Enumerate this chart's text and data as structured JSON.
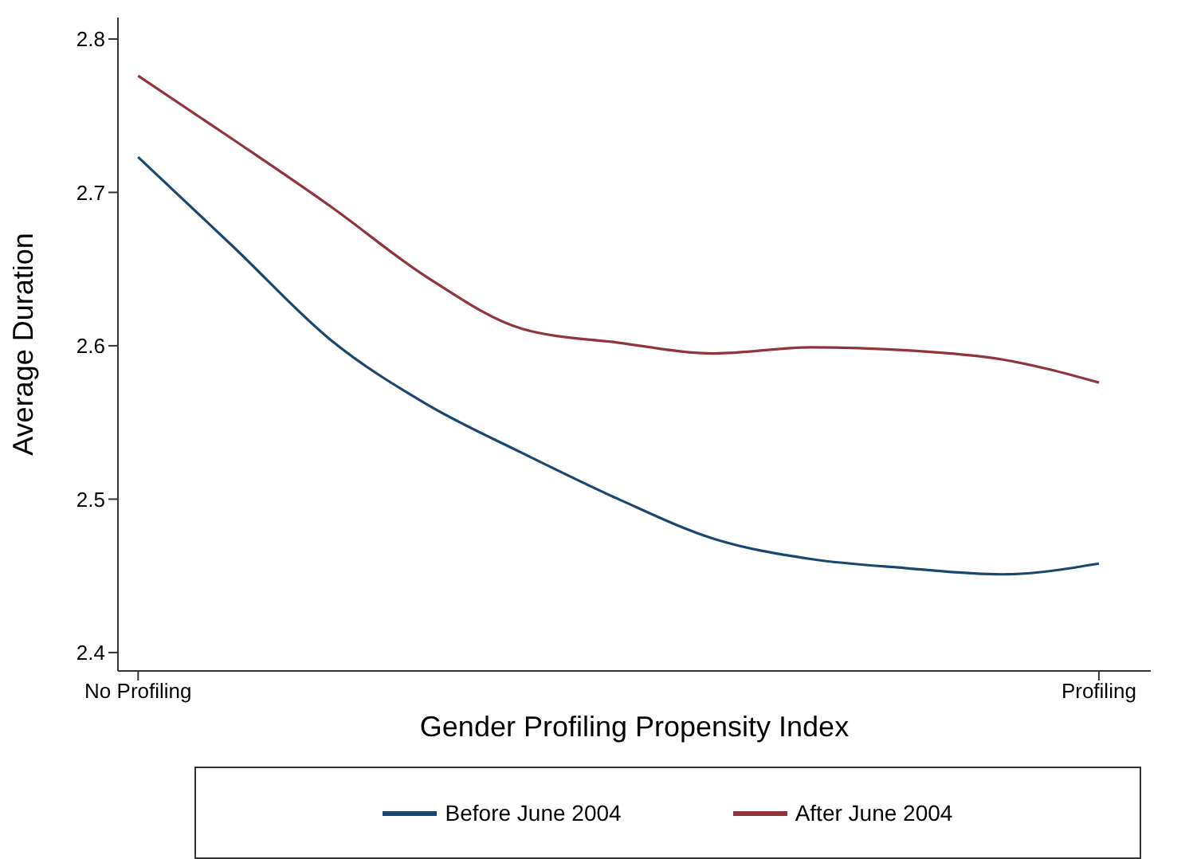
{
  "chart_data": {
    "type": "line",
    "xlabel": "Gender Profiling Propensity Index",
    "ylabel": "Average Duration",
    "categories": [
      "No Profiling",
      null,
      null,
      null,
      null,
      null,
      null,
      null,
      null,
      null,
      "Profiling"
    ],
    "ylim": [
      2.388,
      2.814
    ],
    "yticks": [
      2.4,
      2.5,
      2.6,
      2.7,
      2.8
    ],
    "grid": false,
    "legend": "bottom",
    "marker": "none",
    "line_style": "solid",
    "series": [
      {
        "name": "Before June 2004",
        "color": "#1a476f",
        "values": [
          2.723,
          2.664,
          2.604,
          2.562,
          2.53,
          2.5,
          2.474,
          2.461,
          2.455,
          2.451,
          2.458
        ]
      },
      {
        "name": "After June 2004",
        "color": "#90353b",
        "values": [
          2.776,
          2.734,
          2.691,
          2.645,
          2.611,
          2.602,
          2.595,
          2.599,
          2.597,
          2.591,
          2.576
        ]
      }
    ]
  }
}
